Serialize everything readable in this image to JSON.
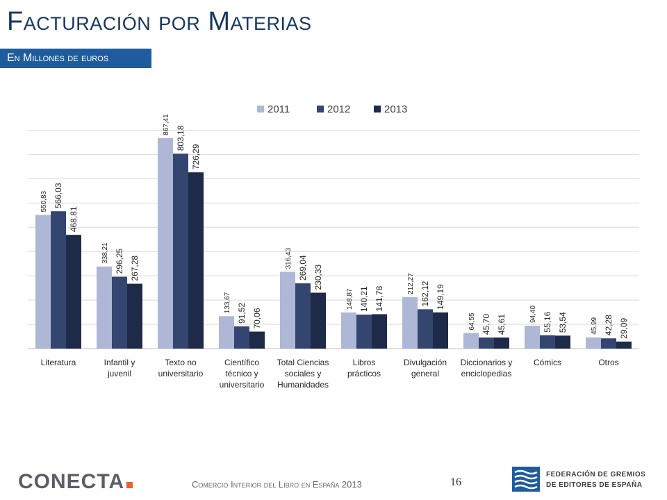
{
  "slide": {
    "title": "Facturación por Materias",
    "subtitle": "En Millones de euros"
  },
  "footer": {
    "logo_text": "CONECTA",
    "caption": "Comercio Interior del Libro en España 2013",
    "page_number": "16",
    "federation_line1": "FEDERACIÓN DE GREMIOS",
    "federation_line2": "DE EDITORES DE ESPAÑA"
  },
  "colors": {
    "title": "#17375e",
    "subtitle_band": "#1f5c9e",
    "accent_orange": "#e8612c",
    "series": [
      "#aeb7d5",
      "#344570",
      "#1f2a48"
    ]
  },
  "chart_data": {
    "type": "bar",
    "title": "",
    "xlabel": "",
    "ylabel": "",
    "ylim": [
      0,
      950
    ],
    "grid": true,
    "legend_position": "top",
    "categories": [
      "Literatura",
      "Infantil y juvenil",
      "Texto no universitario",
      "Científico técnico y universitario",
      "Total Ciencias sociales y Humanidades",
      "Libros prácticos",
      "Divulgación general",
      "Diccionarios y enciclopedias",
      "Cómics",
      "Otros"
    ],
    "category_lines": [
      [
        "Literatura"
      ],
      [
        "Infantil y",
        "juvenil"
      ],
      [
        "Texto no",
        "universitario"
      ],
      [
        "Científico",
        "técnico y",
        "universitario"
      ],
      [
        "Total Ciencias",
        "sociales y",
        "Humanidades"
      ],
      [
        "Libros",
        "prácticos"
      ],
      [
        "Divulgación",
        "general"
      ],
      [
        "Diccionarios y",
        "enciclopedias"
      ],
      [
        "Cómics"
      ],
      [
        "Otros"
      ]
    ],
    "series": [
      {
        "name": "2011",
        "values": [
          550.83,
          338.21,
          867.41,
          133.67,
          316.43,
          148.87,
          212.27,
          64.55,
          94.4,
          45.99
        ],
        "labels": [
          "550,83",
          "338,21",
          "867,41",
          "133,67",
          "316,43",
          "148,87",
          "212,27",
          "64,55",
          "94,40",
          "45,99"
        ]
      },
      {
        "name": "2012",
        "values": [
          566.03,
          296.25,
          803.18,
          91.52,
          269.04,
          140.21,
          162.12,
          45.7,
          55.16,
          42.28
        ],
        "labels": [
          "566,03",
          "296,25",
          "803,18",
          "91,52",
          "269,04",
          "140,21",
          "162,12",
          "45,70",
          "55,16",
          "42,28"
        ]
      },
      {
        "name": "2013",
        "values": [
          468.81,
          267.28,
          726.29,
          70.06,
          230.33,
          141.78,
          149.19,
          45.61,
          53.54,
          29.09
        ],
        "labels": [
          "468,81",
          "267,28",
          "726,29",
          "70,06",
          "230,33",
          "141,78",
          "149,19",
          "45,61",
          "53,54",
          "29,09"
        ]
      }
    ]
  }
}
